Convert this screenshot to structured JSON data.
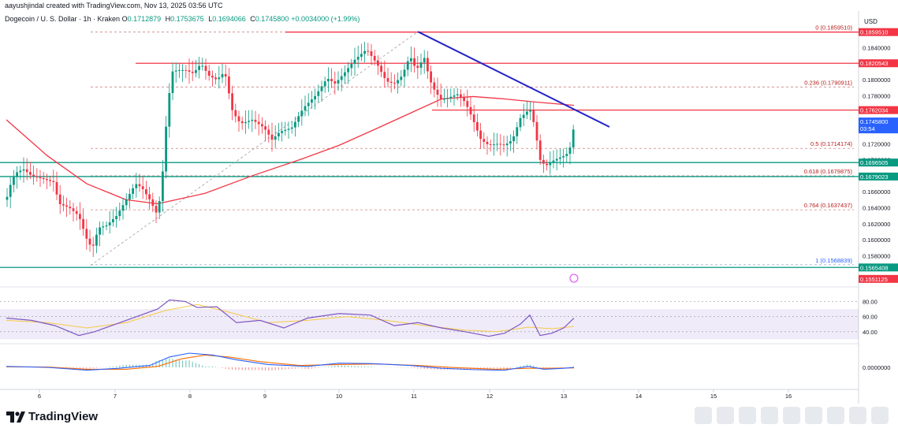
{
  "header": {
    "creator_line": "aayushjindal created with TradingView.com, Nov 13, 2025 03:56 UTC",
    "symbol": "Dogecoin / U. S. Dollar · 1h · Kraken",
    "ohlc": [
      {
        "k": "O",
        "v": "0.1712879"
      },
      {
        "k": "H",
        "v": "0.1753675"
      },
      {
        "k": "L",
        "v": "0.1694066"
      },
      {
        "k": "C",
        "v": "0.1745800"
      },
      {
        "k": "",
        "v": "+0.0034000 (+1.99%)"
      }
    ]
  },
  "colors": {
    "up": "#089981",
    "down": "#f23645",
    "ma": "#f23645",
    "trend": "#2424c8",
    "support": "#089981",
    "resistance": "#f23645",
    "rsi": "#7e57c2",
    "macd": "#2962ff",
    "signal": "#ff6d00"
  },
  "chart_data": {
    "type": "candlestick",
    "title": "Dogecoin / U. S. Dollar · 1h · Kraken",
    "currency": "USD",
    "ylim": [
      0.1545,
      0.1872
    ],
    "price_axis_ticks": [
      "0.1840000",
      "0.1800000",
      "0.1780000",
      "0.1720000",
      "0.1700000",
      "0.1660000",
      "0.1640000",
      "0.1620000",
      "0.1600000",
      "0.1580000"
    ],
    "x_ticks": [
      {
        "label": "6",
        "t": 50
      },
      {
        "label": "7",
        "t": 146
      },
      {
        "label": "8",
        "t": 241
      },
      {
        "label": "9",
        "t": 336
      },
      {
        "label": "10",
        "t": 430
      },
      {
        "label": "11",
        "t": 525
      },
      {
        "label": "12",
        "t": 621
      },
      {
        "label": "13",
        "t": 715
      },
      {
        "label": "14",
        "t": 810
      },
      {
        "label": "15",
        "t": 905
      },
      {
        "label": "16",
        "t": 1000
      }
    ],
    "price_path": [
      [
        8,
        0.165
      ],
      [
        15,
        0.1675
      ],
      [
        22,
        0.1685
      ],
      [
        30,
        0.1688
      ],
      [
        40,
        0.168
      ],
      [
        55,
        0.1676
      ],
      [
        68,
        0.1672
      ],
      [
        75,
        0.1645
      ],
      [
        88,
        0.164
      ],
      [
        100,
        0.163
      ],
      [
        112,
        0.1595
      ],
      [
        118,
        0.1592
      ],
      [
        125,
        0.1615
      ],
      [
        135,
        0.1618
      ],
      [
        148,
        0.163
      ],
      [
        160,
        0.165
      ],
      [
        172,
        0.167
      ],
      [
        180,
        0.1665
      ],
      [
        190,
        0.165
      ],
      [
        200,
        0.163
      ],
      [
        206,
        0.168
      ],
      [
        212,
        0.176
      ],
      [
        218,
        0.181
      ],
      [
        225,
        0.1812
      ],
      [
        235,
        0.1812
      ],
      [
        245,
        0.1808
      ],
      [
        255,
        0.182
      ],
      [
        265,
        0.1805
      ],
      [
        275,
        0.18
      ],
      [
        285,
        0.181
      ],
      [
        295,
        0.176
      ],
      [
        305,
        0.1745
      ],
      [
        320,
        0.175
      ],
      [
        335,
        0.174
      ],
      [
        345,
        0.1725
      ],
      [
        355,
        0.1735
      ],
      [
        370,
        0.174
      ],
      [
        385,
        0.1765
      ],
      [
        400,
        0.178
      ],
      [
        415,
        0.1802
      ],
      [
        425,
        0.1795
      ],
      [
        438,
        0.181
      ],
      [
        450,
        0.1825
      ],
      [
        465,
        0.1838
      ],
      [
        478,
        0.182
      ],
      [
        490,
        0.1798
      ],
      [
        500,
        0.1795
      ],
      [
        510,
        0.1805
      ],
      [
        520,
        0.183
      ],
      [
        528,
        0.1812
      ],
      [
        538,
        0.1828
      ],
      [
        545,
        0.18
      ],
      [
        552,
        0.1785
      ],
      [
        560,
        0.1775
      ],
      [
        570,
        0.1778
      ],
      [
        580,
        0.1782
      ],
      [
        590,
        0.1772
      ],
      [
        600,
        0.175
      ],
      [
        610,
        0.1725
      ],
      [
        620,
        0.1718
      ],
      [
        630,
        0.172
      ],
      [
        640,
        0.1718
      ],
      [
        650,
        0.1725
      ],
      [
        660,
        0.1752
      ],
      [
        668,
        0.176
      ],
      [
        674,
        0.1762
      ],
      [
        680,
        0.173
      ],
      [
        685,
        0.17
      ],
      [
        692,
        0.1692
      ],
      [
        700,
        0.1698
      ],
      [
        708,
        0.1702
      ],
      [
        716,
        0.1705
      ],
      [
        722,
        0.171
      ],
      [
        728,
        0.1742
      ]
    ],
    "moving_average": [
      [
        8,
        0.175
      ],
      [
        60,
        0.1705
      ],
      [
        110,
        0.167
      ],
      [
        160,
        0.165
      ],
      [
        200,
        0.1645
      ],
      [
        260,
        0.1658
      ],
      [
        320,
        0.168
      ],
      [
        380,
        0.17
      ],
      [
        430,
        0.1718
      ],
      [
        480,
        0.174
      ],
      [
        520,
        0.1758
      ],
      [
        560,
        0.1776
      ],
      [
        600,
        0.1779
      ],
      [
        640,
        0.1776
      ],
      [
        680,
        0.1772
      ],
      [
        728,
        0.1768
      ]
    ],
    "fib_levels": [
      {
        "ratio": "0",
        "value": 0.185951,
        "label": "0 (0.1859510)"
      },
      {
        "ratio": "0.236",
        "value": 0.1790911,
        "label": "0.236 (0.1790911)"
      },
      {
        "ratio": "0.5",
        "value": 0.1714174,
        "label": "0.5 (0.1714174)"
      },
      {
        "ratio": "0.618",
        "value": 0.1679875,
        "label": "0.618 (0.1679875)"
      },
      {
        "ratio": "0.764",
        "value": 0.1637437,
        "label": "0.764 (0.1637437)"
      },
      {
        "ratio": "1",
        "value": 0.1568839,
        "label": "1 (0.1568839)"
      }
    ],
    "horizontal_lines": [
      {
        "kind": "resistance",
        "value": 0.1820543,
        "label": "0.1820543",
        "from": 172
      },
      {
        "kind": "resistance",
        "value": 0.1762034,
        "label": "0.1762034",
        "from": 548
      },
      {
        "kind": "support",
        "value": 0.1696505,
        "label": "0.1696505",
        "from": 0
      },
      {
        "kind": "support",
        "value": 0.1679023,
        "label": "0.1679023",
        "from": 0
      },
      {
        "kind": "support",
        "value": 0.1565408,
        "label": "0.1565408",
        "from": 0
      }
    ],
    "trendline": {
      "start": [
        530,
        0.186
      ],
      "end": [
        773,
        0.1741
      ]
    },
    "fib_anchor_line": {
      "start": [
        115,
        0.1568
      ],
      "end": [
        530,
        0.186
      ]
    },
    "current_price": {
      "label": "0.1745800",
      "countdown": "03:54",
      "value": 0.17458
    },
    "extra_price_labels": [
      "0.1859510",
      "0.1551125"
    ],
    "rsi": {
      "ticks": [
        "80.00",
        "60.00",
        "40.00"
      ],
      "ylim": [
        20,
        95
      ],
      "band": [
        30,
        70
      ],
      "values": [
        [
          8,
          58
        ],
        [
          40,
          55
        ],
        [
          70,
          48
        ],
        [
          100,
          35
        ],
        [
          120,
          40
        ],
        [
          160,
          55
        ],
        [
          200,
          70
        ],
        [
          215,
          82
        ],
        [
          235,
          80
        ],
        [
          250,
          72
        ],
        [
          275,
          73
        ],
        [
          300,
          52
        ],
        [
          330,
          55
        ],
        [
          360,
          45
        ],
        [
          390,
          58
        ],
        [
          430,
          64
        ],
        [
          470,
          62
        ],
        [
          500,
          48
        ],
        [
          530,
          52
        ],
        [
          560,
          45
        ],
        [
          590,
          40
        ],
        [
          620,
          34
        ],
        [
          640,
          38
        ],
        [
          660,
          50
        ],
        [
          672,
          62
        ],
        [
          685,
          35
        ],
        [
          700,
          38
        ],
        [
          715,
          45
        ],
        [
          728,
          58
        ]
      ],
      "signal": [
        [
          8,
          55
        ],
        [
          60,
          52
        ],
        [
          110,
          45
        ],
        [
          160,
          52
        ],
        [
          210,
          68
        ],
        [
          250,
          76
        ],
        [
          290,
          66
        ],
        [
          340,
          52
        ],
        [
          390,
          55
        ],
        [
          440,
          60
        ],
        [
          490,
          55
        ],
        [
          540,
          48
        ],
        [
          590,
          42
        ],
        [
          630,
          40
        ],
        [
          670,
          46
        ],
        [
          700,
          44
        ],
        [
          728,
          47
        ]
      ]
    },
    "macd": {
      "zero_label": "0.0000000",
      "ylim": [
        -1,
        1
      ],
      "macd": [
        [
          8,
          0.05
        ],
        [
          60,
          0.0
        ],
        [
          110,
          -0.15
        ],
        [
          150,
          -0.05
        ],
        [
          190,
          0.1
        ],
        [
          215,
          0.55
        ],
        [
          240,
          0.75
        ],
        [
          270,
          0.65
        ],
        [
          300,
          0.4
        ],
        [
          340,
          0.15
        ],
        [
          390,
          0.05
        ],
        [
          430,
          0.22
        ],
        [
          470,
          0.2
        ],
        [
          520,
          0.1
        ],
        [
          560,
          -0.05
        ],
        [
          600,
          -0.12
        ],
        [
          640,
          -0.15
        ],
        [
          670,
          0.05
        ],
        [
          690,
          -0.1
        ],
        [
          715,
          -0.05
        ],
        [
          728,
          0.0
        ]
      ],
      "signal": [
        [
          8,
          0.03
        ],
        [
          60,
          0.02
        ],
        [
          110,
          -0.1
        ],
        [
          160,
          -0.1
        ],
        [
          200,
          0.05
        ],
        [
          230,
          0.45
        ],
        [
          260,
          0.65
        ],
        [
          290,
          0.55
        ],
        [
          330,
          0.3
        ],
        [
          380,
          0.1
        ],
        [
          430,
          0.15
        ],
        [
          480,
          0.18
        ],
        [
          530,
          0.1
        ],
        [
          580,
          -0.02
        ],
        [
          630,
          -0.1
        ],
        [
          670,
          -0.05
        ],
        [
          700,
          -0.05
        ],
        [
          728,
          -0.03
        ]
      ]
    }
  },
  "footer": {
    "brand": "TradingView"
  }
}
